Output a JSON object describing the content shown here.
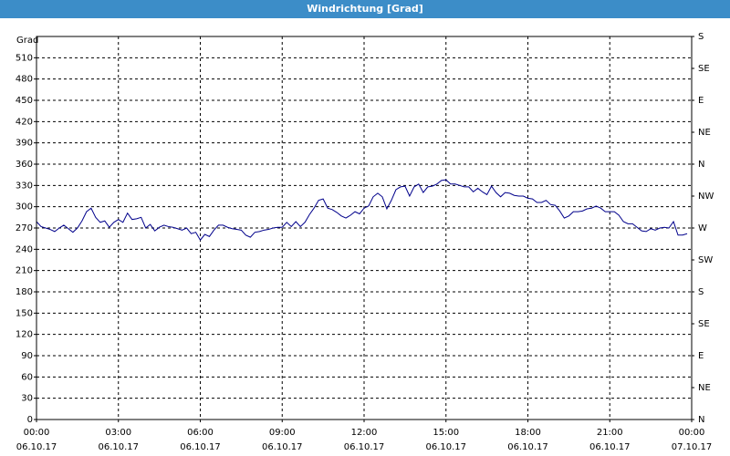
{
  "chart_data": {
    "type": "line",
    "title": "Windrichtung [Grad]",
    "y_label": "Grad",
    "x": [
      0,
      10,
      20,
      30,
      40,
      50,
      60,
      70,
      80,
      90,
      100,
      110,
      120,
      130,
      140,
      150,
      160,
      170,
      180,
      190,
      200,
      210,
      220,
      230,
      240,
      250,
      260,
      270,
      280,
      290,
      300,
      310,
      320,
      330,
      340,
      350,
      360,
      370,
      380,
      390,
      400,
      410,
      420,
      430,
      440,
      450,
      460,
      470,
      480,
      490,
      500,
      510,
      520,
      530,
      540,
      550,
      560,
      570,
      580,
      590,
      600,
      610,
      620,
      630,
      640,
      650,
      660,
      670,
      680,
      690,
      700,
      710,
      720,
      730,
      740,
      750,
      760,
      770,
      780,
      790,
      800,
      810,
      820,
      830,
      840,
      850,
      860,
      870,
      880,
      890,
      900,
      910,
      920,
      930,
      940,
      950,
      960,
      970,
      980,
      990,
      1000,
      1010,
      1020,
      1030,
      1040,
      1050,
      1060,
      1070,
      1080,
      1090,
      1100,
      1110,
      1120,
      1130,
      1140,
      1150,
      1160,
      1170,
      1180,
      1190,
      1200,
      1210,
      1220,
      1230,
      1240,
      1250,
      1260,
      1270,
      1280,
      1290,
      1300,
      1310,
      1320,
      1330,
      1340,
      1350,
      1360,
      1370,
      1380,
      1390,
      1400,
      1410,
      1420,
      1430
    ],
    "series": [
      {
        "color": "#00008b",
        "values": [
          279,
          272,
          270,
          268,
          265,
          270,
          274,
          269,
          264,
          270,
          280,
          293,
          298,
          285,
          278,
          280,
          271,
          278,
          282,
          278,
          291,
          282,
          283,
          285,
          270,
          275,
          266,
          271,
          274,
          272,
          271,
          269,
          267,
          270,
          262,
          264,
          253,
          261,
          258,
          267,
          274,
          274,
          271,
          269,
          268,
          267,
          260,
          257,
          264,
          265,
          267,
          268,
          270,
          271,
          271,
          278,
          272,
          279,
          272,
          278,
          289,
          298,
          309,
          311,
          298,
          296,
          292,
          287,
          284,
          288,
          293,
          290,
          298,
          301,
          314,
          319,
          314,
          297,
          309,
          324,
          328,
          329,
          315,
          328,
          332,
          320,
          328,
          329,
          332,
          337,
          338,
          332,
          332,
          330,
          328,
          328,
          321,
          326,
          321,
          317,
          329,
          320,
          314,
          320,
          319,
          316,
          315,
          315,
          312,
          311,
          306,
          306,
          309,
          303,
          302,
          294,
          284,
          287,
          293,
          293,
          294,
          297,
          298,
          301,
          298,
          293,
          293,
          293,
          288,
          279,
          276,
          276,
          271,
          266,
          265,
          269,
          267,
          270,
          271,
          270,
          279,
          260,
          260,
          262
        ]
      }
    ],
    "xlim": [
      0,
      1440
    ],
    "xticks": [
      {
        "value": 0,
        "label": "00:00",
        "date": "06.10.17"
      },
      {
        "value": 180,
        "label": "03:00",
        "date": "06.10.17"
      },
      {
        "value": 360,
        "label": "06:00",
        "date": "06.10.17"
      },
      {
        "value": 540,
        "label": "09:00",
        "date": "06.10.17"
      },
      {
        "value": 720,
        "label": "12:00",
        "date": "06.10.17"
      },
      {
        "value": 900,
        "label": "15:00",
        "date": "06.10.17"
      },
      {
        "value": 1080,
        "label": "18:00",
        "date": "06.10.17"
      },
      {
        "value": 1260,
        "label": "21:00",
        "date": "06.10.17"
      },
      {
        "value": 1440,
        "label": "00:00",
        "date": "07.10.17"
      }
    ],
    "ylim": [
      0,
      540
    ],
    "yticks": [
      0,
      30,
      60,
      90,
      120,
      150,
      180,
      210,
      240,
      270,
      300,
      330,
      360,
      390,
      420,
      450,
      480,
      510
    ],
    "y2lim": [
      0,
      540
    ],
    "y2ticks": [
      {
        "value": 0,
        "label": "N"
      },
      {
        "value": 45,
        "label": "NE"
      },
      {
        "value": 90,
        "label": "E"
      },
      {
        "value": 135,
        "label": "SE"
      },
      {
        "value": 180,
        "label": "S"
      },
      {
        "value": 225,
        "label": "SW"
      },
      {
        "value": 270,
        "label": "W"
      },
      {
        "value": 315,
        "label": "NW"
      },
      {
        "value": 360,
        "label": "N"
      },
      {
        "value": 405,
        "label": "NE"
      },
      {
        "value": 450,
        "label": "E"
      },
      {
        "value": 495,
        "label": "SE"
      },
      {
        "value": 540,
        "label": "S"
      }
    ],
    "grid": true
  }
}
